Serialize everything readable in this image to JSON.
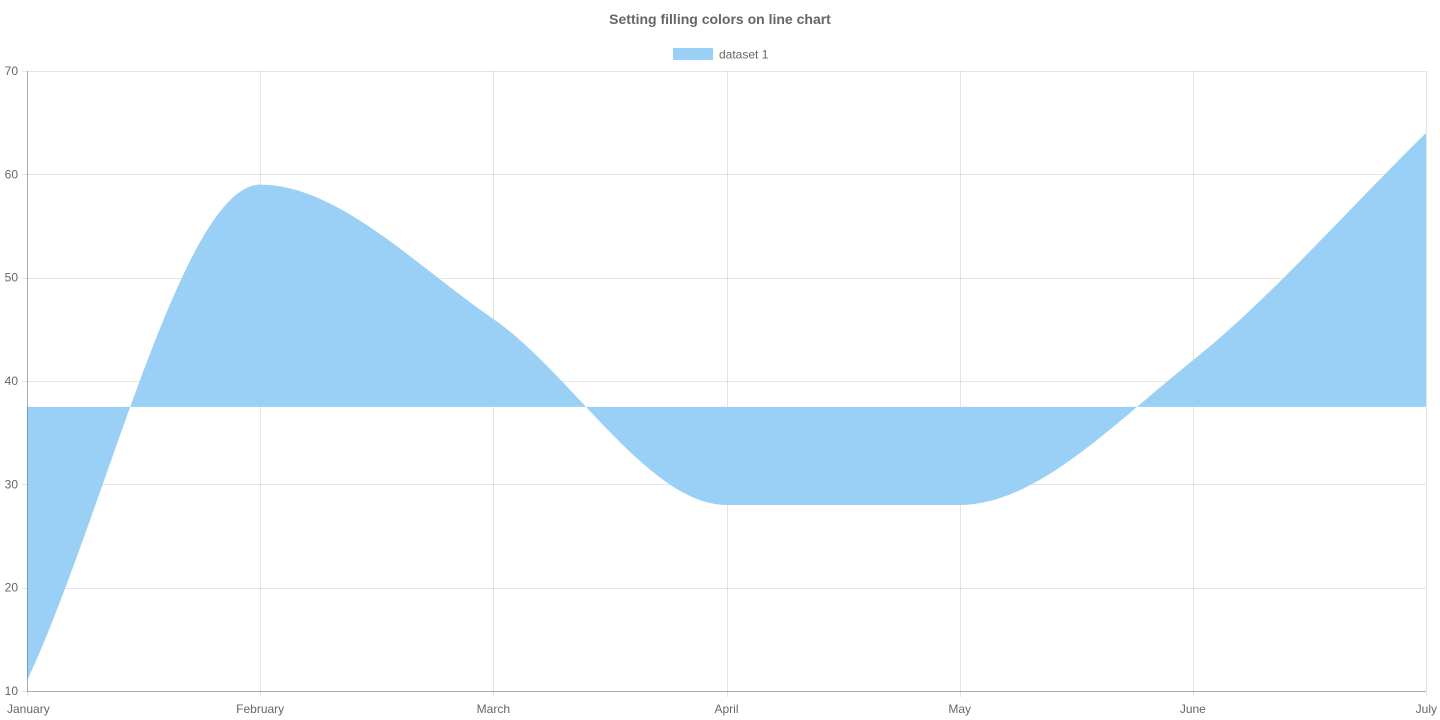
{
  "chart_data": {
    "type": "area",
    "title": "Setting filling colors on line chart",
    "xlabel": "",
    "ylabel": "",
    "categories": [
      "January",
      "February",
      "March",
      "April",
      "May",
      "June",
      "July"
    ],
    "series": [
      {
        "name": "dataset 1",
        "values": [
          11,
          59,
          46,
          28,
          28,
          42,
          64
        ],
        "fill_color": "#9ad0f5",
        "fill_baseline": 37.5
      }
    ],
    "ylim": [
      10,
      70
    ],
    "yticks": [
      10,
      20,
      30,
      40,
      50,
      60,
      70
    ],
    "grid": true,
    "legend_position": "top-center"
  }
}
